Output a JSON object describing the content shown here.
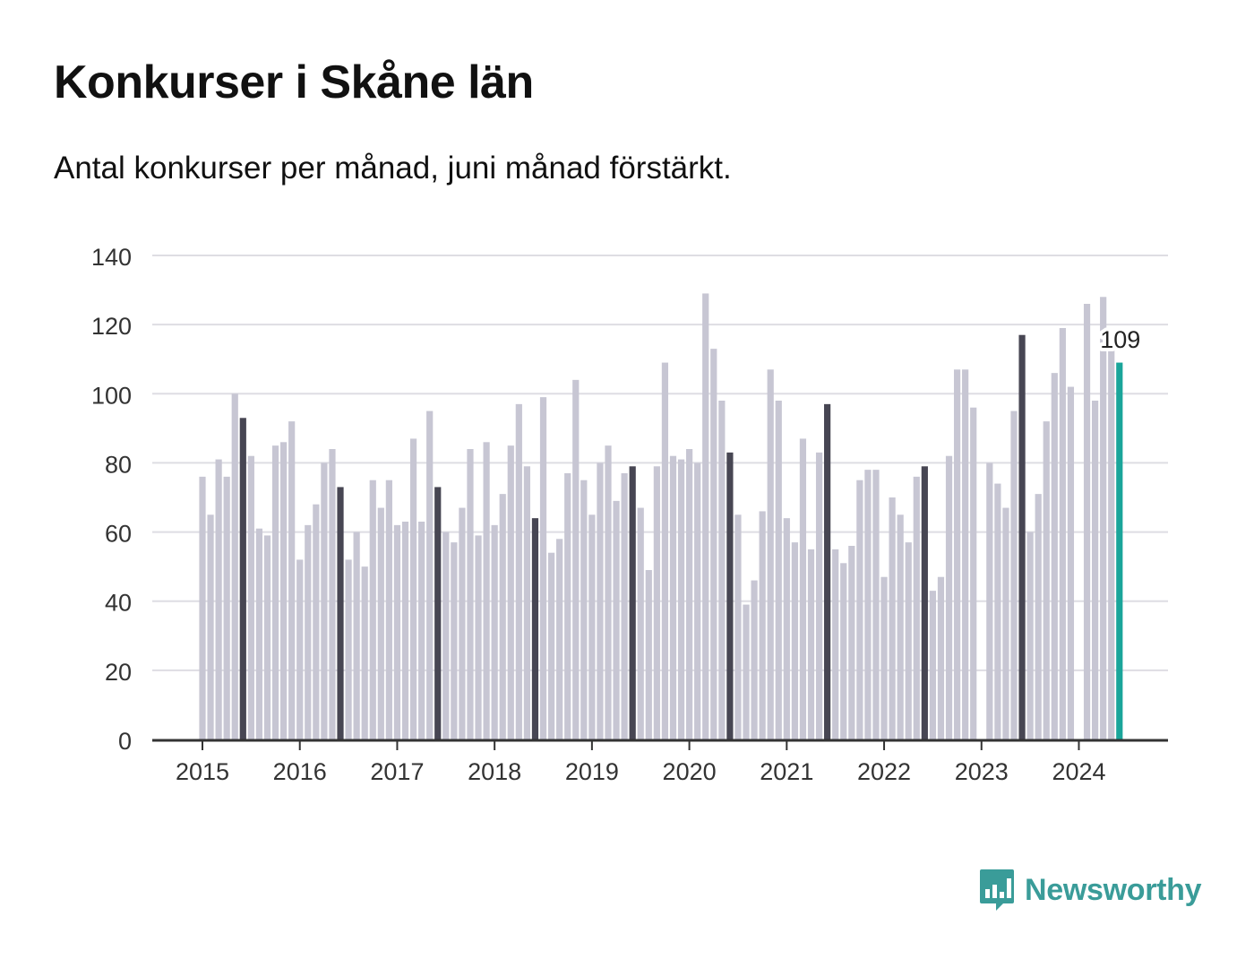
{
  "title": "Konkurser i Skåne län",
  "subtitle": "Antal konkurser per månad, juni månad förstärkt.",
  "brand": {
    "name": "Newsworthy",
    "icon": "newsworthy-logo-icon",
    "color": "#3a9c99"
  },
  "chart_data": {
    "type": "bar",
    "title": "Konkurser i Skåne län",
    "subtitle": "Antal konkurser per månad, juni månad förstärkt.",
    "xlabel": "",
    "ylabel": "",
    "ylim": [
      0,
      140
    ],
    "yticks": [
      0,
      20,
      40,
      60,
      80,
      100,
      120,
      140
    ],
    "xtick_labels": [
      "2015",
      "2016",
      "2017",
      "2018",
      "2019",
      "2020",
      "2021",
      "2022",
      "2023",
      "2024"
    ],
    "grid": true,
    "start": "2015-01",
    "highlight_month": "juni",
    "colors": {
      "default": "#c7c6d3",
      "june": "#474653",
      "latest": "#1aa59a",
      "grid": "#dedde3",
      "axis": "#333333"
    },
    "latest_label": "109",
    "series": [
      {
        "values": [
          76,
          65,
          81,
          76,
          100,
          93,
          82,
          61,
          59,
          85,
          86,
          92,
          52,
          62,
          68,
          80,
          84,
          73,
          52,
          60,
          50,
          75,
          67,
          75,
          62,
          63,
          87,
          63,
          95,
          73,
          60,
          57,
          67,
          84,
          59,
          86,
          62,
          71,
          85,
          97,
          79,
          64,
          99,
          54,
          58,
          77,
          104,
          75,
          65,
          80,
          85,
          69,
          77,
          79,
          67,
          49,
          79,
          109,
          82,
          81,
          84,
          80,
          129,
          113,
          98,
          83,
          65,
          39,
          46,
          66,
          107,
          98,
          64,
          57,
          87,
          55,
          83,
          97,
          55,
          51,
          56,
          75,
          78,
          78,
          47,
          70,
          65,
          57,
          76,
          79,
          43,
          47,
          82,
          107,
          107,
          96,
          0,
          80,
          74,
          67,
          95,
          117,
          60,
          71,
          92,
          106,
          119,
          102,
          0,
          126,
          98,
          128,
          113,
          109
        ]
      }
    ]
  }
}
